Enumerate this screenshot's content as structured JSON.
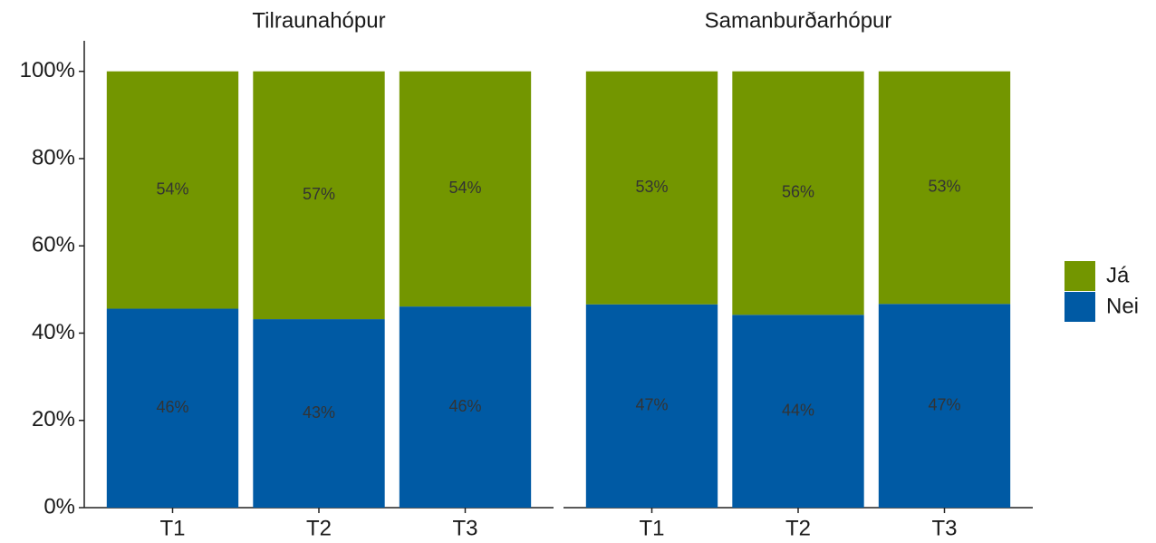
{
  "chart_data": {
    "type": "bar",
    "stacked": true,
    "legend": "right",
    "ylim": [
      0,
      107
    ],
    "yticks": [
      {
        "value": 0,
        "label": "0%"
      },
      {
        "value": 20,
        "label": "20%"
      },
      {
        "value": 40,
        "label": "40%"
      },
      {
        "value": 60,
        "label": "60%"
      },
      {
        "value": 80,
        "label": "80%"
      },
      {
        "value": 100,
        "label": "100%"
      }
    ],
    "panels": [
      {
        "title": "Tilraunahópur",
        "categories": [
          "T1",
          "T2",
          "T3"
        ]
      },
      {
        "title": "Samanburðarhópur",
        "categories": [
          "T1",
          "T2",
          "T3"
        ]
      }
    ],
    "series": [
      {
        "name": "Nei",
        "color": "#005aa4",
        "values": [
          [
            45.6,
            43.2,
            46.1
          ],
          [
            46.6,
            44.2,
            46.7
          ]
        ],
        "value_labels": [
          [
            "46%",
            "43%",
            "46%"
          ],
          [
            "47%",
            "44%",
            "47%"
          ]
        ]
      },
      {
        "name": "Já",
        "color": "#739600",
        "values": [
          [
            54.4,
            56.8,
            53.9
          ],
          [
            53.4,
            55.8,
            53.3
          ]
        ],
        "value_labels": [
          [
            "54%",
            "57%",
            "54%"
          ],
          [
            "53%",
            "56%",
            "53%"
          ]
        ]
      }
    ]
  }
}
